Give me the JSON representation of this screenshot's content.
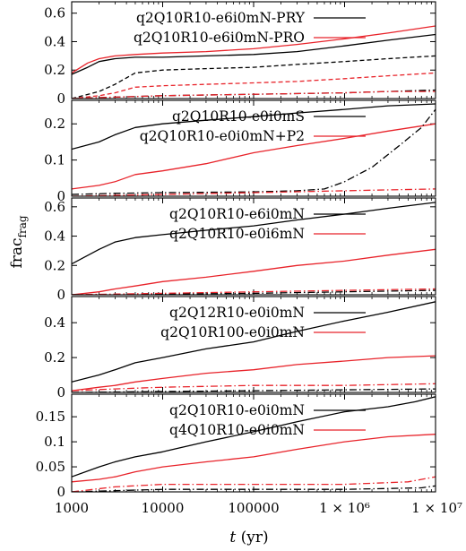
{
  "figure": {
    "ylabel_main": "frac",
    "ylabel_sub": "frag",
    "xlabel_italic": "t",
    "xlabel_unit": " (yr)"
  },
  "chart_data": {
    "type": "line",
    "x_scale": "log",
    "xlim": [
      1000,
      10000000
    ],
    "x_ticks": [
      {
        "value": 1000,
        "label": "1000"
      },
      {
        "value": 10000,
        "label": "10000"
      },
      {
        "value": 100000,
        "label": "100000"
      },
      {
        "value": 1000000,
        "label": "1 × 10⁶"
      },
      {
        "value": 10000000,
        "label": "1 × 10⁷"
      }
    ],
    "xlabel": "t (yr)",
    "ylabel": "frac_frag",
    "colors": {
      "black": "#000000",
      "red": "#e8232a"
    },
    "panels": [
      {
        "ylim": [
          0,
          0.68
        ],
        "yticks": [
          0,
          0.2,
          0.4,
          0.6
        ],
        "ytick_labels": [
          "0",
          "0.2",
          "0.4",
          "0.6"
        ],
        "legend": [
          {
            "label": "q2Q10R10-e6i0mN-PRY",
            "color": "black"
          },
          {
            "label": "q2Q10R10-e6i0mN-PRO",
            "color": "red"
          }
        ],
        "series": [
          {
            "color": "black",
            "dash": "solid",
            "x": [
              1000,
              1500,
              2000,
              3000,
              5000,
              10000,
              30000,
              100000,
              300000,
              1000000,
              3000000,
              10000000
            ],
            "y": [
              0.17,
              0.22,
              0.26,
              0.28,
              0.29,
              0.29,
              0.3,
              0.31,
              0.33,
              0.37,
              0.41,
              0.45
            ]
          },
          {
            "color": "red",
            "dash": "solid",
            "x": [
              1000,
              1500,
              2000,
              3000,
              5000,
              10000,
              30000,
              100000,
              300000,
              1000000,
              3000000,
              10000000
            ],
            "y": [
              0.18,
              0.25,
              0.28,
              0.3,
              0.31,
              0.32,
              0.33,
              0.35,
              0.38,
              0.42,
              0.46,
              0.51
            ]
          },
          {
            "color": "black",
            "dash": "dashed",
            "x": [
              1000,
              2000,
              3000,
              5000,
              10000,
              30000,
              100000,
              300000,
              1000000,
              3000000,
              10000000
            ],
            "y": [
              0.0,
              0.05,
              0.1,
              0.18,
              0.2,
              0.21,
              0.22,
              0.24,
              0.26,
              0.28,
              0.3
            ]
          },
          {
            "color": "red",
            "dash": "dashed",
            "x": [
              1000,
              2000,
              3000,
              5000,
              10000,
              30000,
              100000,
              300000,
              1000000,
              3000000,
              10000000
            ],
            "y": [
              0.0,
              0.02,
              0.04,
              0.08,
              0.09,
              0.1,
              0.11,
              0.12,
              0.14,
              0.16,
              0.18
            ]
          },
          {
            "color": "black",
            "dash": "dashdot",
            "x": [
              1000,
              3000,
              10000,
              100000,
              1000000,
              3000000,
              10000000
            ],
            "y": [
              0.0,
              0.01,
              0.02,
              0.03,
              0.04,
              0.05,
              0.06
            ]
          },
          {
            "color": "red",
            "dash": "dashdot",
            "x": [
              1000,
              3000,
              10000,
              100000,
              1000000,
              3000000,
              10000000
            ],
            "y": [
              0.0,
              0.01,
              0.02,
              0.03,
              0.04,
              0.05,
              0.05
            ]
          }
        ]
      },
      {
        "ylim": [
          0,
          0.265
        ],
        "yticks": [
          0,
          0.1,
          0.2
        ],
        "ytick_labels": [
          "0",
          "0.1",
          "0.2"
        ],
        "legend": [
          {
            "label": "q2Q10R10-e0i0mS",
            "color": "black"
          },
          {
            "label": "q2Q10R10-e0i0mN+P2",
            "color": "red"
          }
        ],
        "series": [
          {
            "color": "black",
            "dash": "solid",
            "x": [
              1000,
              2000,
              3000,
              5000,
              10000,
              30000,
              100000,
              300000,
              1000000,
              3000000,
              10000000
            ],
            "y": [
              0.13,
              0.15,
              0.17,
              0.19,
              0.2,
              0.21,
              0.22,
              0.23,
              0.24,
              0.25,
              0.255
            ]
          },
          {
            "color": "red",
            "dash": "solid",
            "x": [
              1000,
              2000,
              3000,
              5000,
              10000,
              30000,
              100000,
              300000,
              1000000,
              3000000,
              10000000
            ],
            "y": [
              0.02,
              0.03,
              0.04,
              0.06,
              0.07,
              0.09,
              0.12,
              0.14,
              0.16,
              0.18,
              0.2
            ]
          },
          {
            "color": "black",
            "dash": "dashdot",
            "x": [
              1000,
              3000,
              10000,
              100000,
              300000,
              600000,
              1000000,
              2000000,
              4000000,
              7000000,
              10000000
            ],
            "y": [
              0.005,
              0.008,
              0.01,
              0.012,
              0.015,
              0.02,
              0.04,
              0.08,
              0.14,
              0.19,
              0.24
            ]
          },
          {
            "color": "red",
            "dash": "dashdot",
            "x": [
              1000,
              10000,
              100000,
              1000000,
              10000000
            ],
            "y": [
              0.0,
              0.005,
              0.01,
              0.015,
              0.02
            ]
          }
        ]
      },
      {
        "ylim": [
          0,
          0.66
        ],
        "yticks": [
          0,
          0.2,
          0.4,
          0.6
        ],
        "ytick_labels": [
          "0",
          "0.2",
          "0.4",
          "0.6"
        ],
        "legend": [
          {
            "label": "q2Q10R10-e6i0mN",
            "color": "black"
          },
          {
            "label": "q2Q10R10-e0i6mN",
            "color": "red"
          }
        ],
        "series": [
          {
            "color": "black",
            "dash": "solid",
            "x": [
              1000,
              2000,
              3000,
              5000,
              10000,
              30000,
              100000,
              300000,
              1000000,
              3000000,
              10000000
            ],
            "y": [
              0.21,
              0.31,
              0.36,
              0.39,
              0.41,
              0.44,
              0.47,
              0.51,
              0.55,
              0.59,
              0.63
            ]
          },
          {
            "color": "red",
            "dash": "solid",
            "x": [
              1000,
              2000,
              3000,
              5000,
              10000,
              30000,
              100000,
              300000,
              1000000,
              3000000,
              10000000
            ],
            "y": [
              0.0,
              0.02,
              0.04,
              0.06,
              0.09,
              0.12,
              0.16,
              0.2,
              0.23,
              0.27,
              0.31
            ]
          },
          {
            "color": "black",
            "dash": "dashdot",
            "x": [
              1000,
              10000,
              100000,
              1000000,
              10000000
            ],
            "y": [
              0.0,
              0.005,
              0.01,
              0.02,
              0.03
            ]
          },
          {
            "color": "red",
            "dash": "dashdot",
            "x": [
              1000,
              10000,
              100000,
              1000000,
              10000000
            ],
            "y": [
              0.0,
              0.01,
              0.02,
              0.03,
              0.04
            ]
          }
        ]
      },
      {
        "ylim": [
          0,
          0.55
        ],
        "yticks": [
          0,
          0.2,
          0.4
        ],
        "ytick_labels": [
          "0",
          "0.2",
          "0.4"
        ],
        "legend": [
          {
            "label": "q2Q12R10-e0i0mN",
            "color": "black"
          },
          {
            "label": "q2Q10R100-e0i0mN",
            "color": "red"
          }
        ],
        "series": [
          {
            "color": "black",
            "dash": "solid",
            "x": [
              1000,
              2000,
              3000,
              5000,
              10000,
              30000,
              100000,
              300000,
              1000000,
              3000000,
              10000000
            ],
            "y": [
              0.06,
              0.1,
              0.13,
              0.17,
              0.2,
              0.25,
              0.29,
              0.35,
              0.41,
              0.46,
              0.52
            ]
          },
          {
            "color": "red",
            "dash": "solid",
            "x": [
              1000,
              2000,
              3000,
              5000,
              10000,
              30000,
              100000,
              300000,
              1000000,
              3000000,
              10000000
            ],
            "y": [
              0.01,
              0.03,
              0.04,
              0.06,
              0.08,
              0.11,
              0.13,
              0.16,
              0.18,
              0.2,
              0.21
            ]
          },
          {
            "color": "black",
            "dash": "dashdot",
            "x": [
              1000,
              10000,
              100000,
              1000000,
              10000000
            ],
            "y": [
              0.0,
              0.005,
              0.01,
              0.015,
              0.02
            ]
          },
          {
            "color": "red",
            "dash": "dashdot",
            "x": [
              1000,
              3000,
              10000,
              100000,
              1000000,
              10000000
            ],
            "y": [
              0.01,
              0.02,
              0.03,
              0.04,
              0.04,
              0.05
            ]
          }
        ]
      },
      {
        "ylim": [
          0,
          0.195
        ],
        "yticks": [
          0,
          0.05,
          0.1,
          0.15
        ],
        "ytick_labels": [
          "0",
          "0.05",
          "0.1",
          "0.15"
        ],
        "legend": [
          {
            "label": "q2Q10R10-e0i0mN",
            "color": "black"
          },
          {
            "label": "q4Q10R10-e0i0mN",
            "color": "red"
          }
        ],
        "series": [
          {
            "color": "black",
            "dash": "solid",
            "x": [
              1000,
              2000,
              3000,
              5000,
              10000,
              30000,
              100000,
              300000,
              1000000,
              3000000,
              6000000,
              10000000
            ],
            "y": [
              0.03,
              0.05,
              0.06,
              0.07,
              0.08,
              0.1,
              0.12,
              0.14,
              0.16,
              0.17,
              0.18,
              0.19
            ]
          },
          {
            "color": "red",
            "dash": "solid",
            "x": [
              1000,
              2000,
              3000,
              5000,
              10000,
              30000,
              100000,
              300000,
              1000000,
              3000000,
              10000000
            ],
            "y": [
              0.02,
              0.025,
              0.03,
              0.04,
              0.05,
              0.06,
              0.07,
              0.085,
              0.1,
              0.11,
              0.115
            ]
          },
          {
            "color": "black",
            "dash": "dashdot",
            "x": [
              1000,
              10000,
              100000,
              1000000,
              7000000,
              10000000
            ],
            "y": [
              0.0,
              0.005,
              0.005,
              0.005,
              0.008,
              0.012
            ]
          },
          {
            "color": "red",
            "dash": "dashdot",
            "x": [
              1000,
              3000,
              10000,
              100000,
              1000000,
              5000000,
              10000000
            ],
            "y": [
              0.0,
              0.01,
              0.015,
              0.015,
              0.015,
              0.02,
              0.03
            ]
          }
        ]
      }
    ]
  }
}
